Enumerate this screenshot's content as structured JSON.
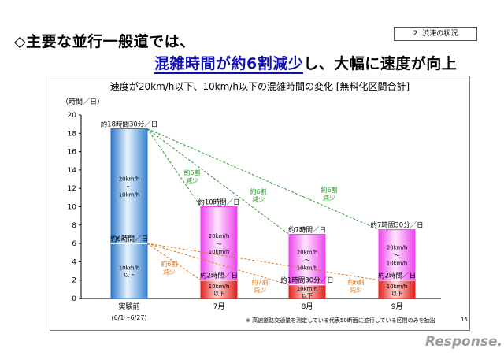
{
  "header": {
    "line1": "◇主要な並行一般道では、",
    "line2_underlined": "混雑時間が約6割減少",
    "line2_rest": "し、大幅に速度が向上",
    "section_tag": "2. 渋滞の状況"
  },
  "page_number": "15",
  "footnote": "※ 高速道路交通量を測定している代表50断面に並行している区間のみを抽出",
  "logo_text": "Response.",
  "colors": {
    "blue_bar": "#5aa0dc",
    "magenta_bar": "#ff66ff",
    "red_bar": "#ee3030",
    "green_line": "#2a9a2a",
    "orange_line": "#e07a20"
  },
  "chart_data": {
    "type": "bar",
    "title": "速度が20km/h以下、10km/h以下の混雑時間の変化 [無料化区間合計]",
    "ylabel": "（時間／日）",
    "ylim": [
      0,
      20
    ],
    "yticks": [
      "0",
      "2",
      "4",
      "6",
      "8",
      "10",
      "12",
      "14",
      "16",
      "18",
      "20"
    ],
    "categories": [
      "実験前",
      "7月",
      "8月",
      "9月"
    ],
    "category_sub": [
      "(6/1～6/27)",
      "",
      "",
      ""
    ],
    "series": [
      {
        "name": "20km/h～10km/h",
        "values": [
          18.5,
          10.0,
          7.0,
          7.5
        ],
        "in_bar_label": [
          "20km/h\n～\n10km/h",
          "20km/h\n～\n10km/h",
          "20km/h\n～\n10km/h",
          "20km/h\n～\n10km/h"
        ]
      },
      {
        "name": "10km/h以下",
        "values": [
          6.0,
          2.0,
          1.5,
          2.0
        ],
        "in_bar_label": [
          "10km/h\n以下",
          "10km/h\n以下",
          "10km/h\n以下",
          "10km/h\n以下"
        ]
      }
    ],
    "top_labels_outer": [
      "約18時間30分／日",
      "約10時間／日",
      "約7時間／日",
      "約7時間30分／日"
    ],
    "top_labels_inner": [
      "約6時間／日",
      "約2時間／日",
      "約1時間30分／日",
      "約2時間／日"
    ],
    "annotations_green": [
      "約5割\n減少",
      "約6割\n減少",
      "約6割\n減少"
    ],
    "annotations_orange": [
      "約6割\n減少",
      "約7割\n減少",
      "約6割\n減少"
    ]
  }
}
